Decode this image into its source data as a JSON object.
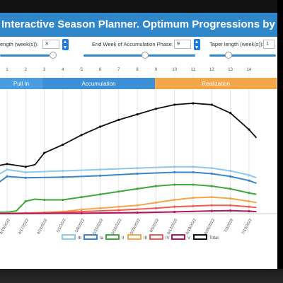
{
  "title": "Interactive Season Planner.  Optimum Progressions by Zo",
  "controls": [
    {
      "label": "ength (week(s)):",
      "value": "3"
    },
    {
      "label": "End Week of Accumulation Phase:",
      "value": "9"
    },
    {
      "label": "Taper length (week(s)):",
      "value": "1"
    }
  ],
  "phases": [
    {
      "label": "Pull In",
      "start": 0.25,
      "end": 2.9,
      "color": "#4a9de0"
    },
    {
      "label": "Accumulation",
      "start": 2.9,
      "end": 8.95,
      "color": "#3d8fd6"
    },
    {
      "label": "Realization",
      "start": 8.95,
      "end": 15.5,
      "color": "#f4a64a"
    }
  ],
  "chart_data": {
    "type": "line",
    "weeks": [
      1,
      2,
      3,
      4,
      5,
      6,
      7,
      8,
      9,
      10,
      11,
      12,
      13,
      14
    ],
    "x_dates": [
      "4/10/2022",
      "4/17/2022",
      "4/24/2022",
      "5/1/2022",
      "5/8/2022",
      "5/15/2022",
      "5/22/2022",
      "5/29/2022",
      "6/5/2022",
      "6/12/2022",
      "6/19/2022",
      "6/26/2022",
      "7/3/2022",
      "7/10/2022"
    ],
    "ylim": [
      0,
      100
    ],
    "series": [
      {
        "name": "Ib",
        "color": "#8ec8e8",
        "values": [
          [
            -0.3,
            4
          ],
          [
            0.5,
            28
          ],
          [
            1,
            32
          ],
          [
            2,
            30
          ],
          [
            4,
            31
          ],
          [
            6,
            32
          ],
          [
            8,
            33
          ],
          [
            10,
            34
          ],
          [
            11,
            34
          ],
          [
            12,
            33
          ],
          [
            13,
            31
          ],
          [
            14,
            28
          ],
          [
            14.4,
            26
          ]
        ]
      },
      {
        "name": "Ia",
        "color": "#3a86c8",
        "values": [
          [
            -0.3,
            3
          ],
          [
            0.5,
            22
          ],
          [
            1,
            27
          ],
          [
            2,
            26
          ],
          [
            4,
            26.5
          ],
          [
            6,
            27.5
          ],
          [
            8,
            29
          ],
          [
            10,
            30
          ],
          [
            11,
            30
          ],
          [
            12,
            29
          ],
          [
            13,
            27
          ],
          [
            14,
            24
          ],
          [
            14.4,
            22
          ]
        ]
      },
      {
        "name": "II",
        "color": "#3ea83a",
        "values": [
          [
            -0.3,
            1
          ],
          [
            1,
            1
          ],
          [
            1.5,
            2
          ],
          [
            2,
            9
          ],
          [
            2.5,
            10.5
          ],
          [
            3,
            10
          ],
          [
            4,
            10
          ],
          [
            5,
            12
          ],
          [
            6,
            14
          ],
          [
            7,
            16
          ],
          [
            8,
            18
          ],
          [
            9,
            20
          ],
          [
            10,
            21
          ],
          [
            11,
            21
          ],
          [
            12,
            20
          ],
          [
            13,
            18
          ],
          [
            14,
            15
          ],
          [
            14.4,
            14
          ]
        ]
      },
      {
        "name": "III",
        "color": "#f4a64a",
        "values": [
          [
            -0.3,
            0
          ],
          [
            2,
            0.5
          ],
          [
            4,
            1.5
          ],
          [
            5,
            3
          ],
          [
            6,
            4
          ],
          [
            7,
            5
          ],
          [
            8,
            6
          ],
          [
            9,
            8
          ],
          [
            10,
            10
          ],
          [
            11,
            11.5
          ],
          [
            12,
            12
          ],
          [
            13,
            11
          ],
          [
            14,
            9
          ],
          [
            14.4,
            8
          ]
        ]
      },
      {
        "name": "IV",
        "color": "#f05a50",
        "values": [
          [
            -0.3,
            0
          ],
          [
            3,
            0.5
          ],
          [
            5,
            1.5
          ],
          [
            7,
            2.5
          ],
          [
            9,
            4
          ],
          [
            10,
            5
          ],
          [
            11,
            5.5
          ],
          [
            12,
            6
          ],
          [
            13,
            6
          ],
          [
            14,
            5
          ],
          [
            14.4,
            4.5
          ]
        ]
      },
      {
        "name": "V",
        "color": "#b0175a",
        "values": [
          [
            -0.3,
            0
          ],
          [
            5,
            0.3
          ],
          [
            8,
            0.8
          ],
          [
            10,
            1.3
          ],
          [
            12,
            2
          ],
          [
            13,
            2.2
          ],
          [
            14,
            1.8
          ],
          [
            14.4,
            1.5
          ]
        ]
      },
      {
        "name": "Total",
        "color": "#111111",
        "values": [
          [
            -0.3,
            8
          ],
          [
            0,
            14
          ],
          [
            0.3,
            35
          ],
          [
            0.6,
            35
          ],
          [
            1,
            36
          ],
          [
            1.5,
            35
          ],
          [
            2,
            34
          ],
          [
            2.5,
            35.5
          ],
          [
            3,
            44
          ],
          [
            4,
            50
          ],
          [
            5,
            57
          ],
          [
            6,
            63
          ],
          [
            7,
            68
          ],
          [
            8,
            72
          ],
          [
            9,
            76
          ],
          [
            10,
            79
          ],
          [
            11,
            80
          ],
          [
            12,
            79
          ],
          [
            13,
            73
          ],
          [
            14,
            61
          ],
          [
            14.4,
            55
          ]
        ]
      }
    ]
  }
}
